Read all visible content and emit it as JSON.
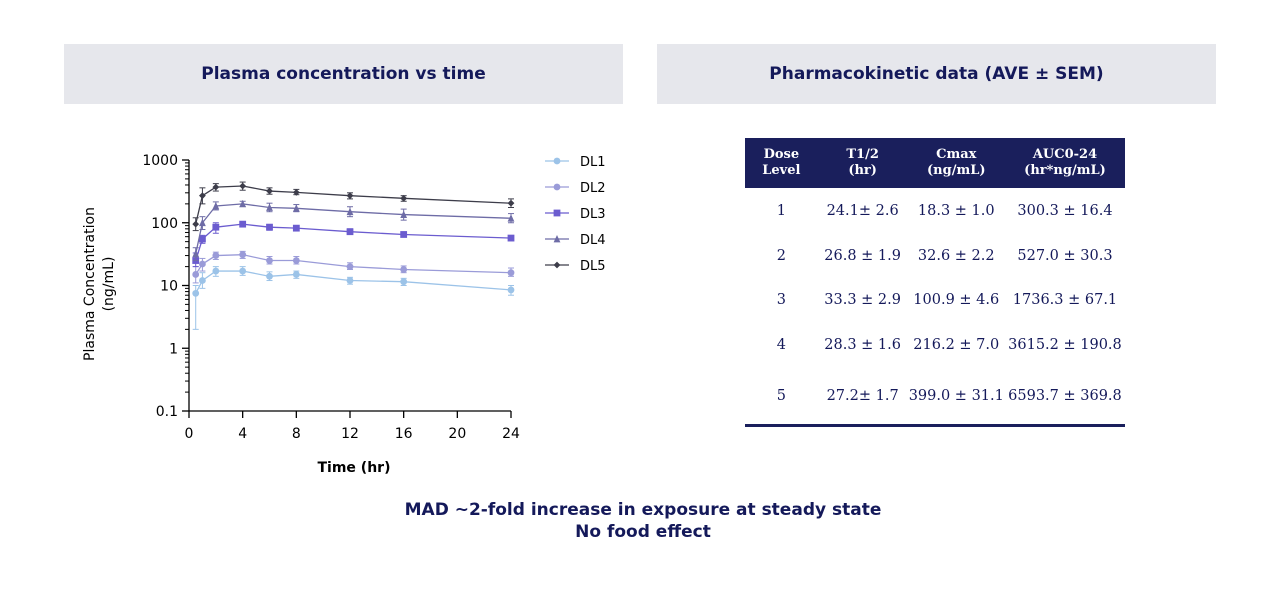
{
  "panels": {
    "left_title": "Plasma concentration vs time",
    "right_title": "Pharmacokinetic data  (AVE ± SEM)"
  },
  "chart_data": {
    "type": "line",
    "title": "",
    "xlabel": "Time (hr)",
    "ylabel": [
      "Plasma Concentration",
      "(ng/mL)"
    ],
    "x_ticks": [
      0,
      4,
      8,
      12,
      16,
      20,
      24
    ],
    "y_scale": "log",
    "y_ticks": [
      0.1,
      1,
      10,
      100,
      1000
    ],
    "y_tick_labels": [
      "0.1",
      "1",
      "10",
      "100",
      "1000"
    ],
    "xlim": [
      0,
      24
    ],
    "ylim": [
      0.1,
      1000
    ],
    "legend_position": "right",
    "x": [
      0.5,
      1,
      2,
      4,
      6,
      8,
      12,
      16,
      24
    ],
    "series": [
      {
        "name": "DL1",
        "color": "#9cc3e8",
        "marker": "circle",
        "values": [
          7.5,
          12,
          17,
          17,
          14,
          15,
          12,
          11.5,
          8.5
        ],
        "err_low": [
          2,
          9,
          14,
          14.5,
          12,
          13,
          10.5,
          10,
          7
        ],
        "err_high": [
          10,
          16,
          20,
          20,
          16.5,
          17,
          13.5,
          13,
          10
        ]
      },
      {
        "name": "DL2",
        "color": "#9a9bd8",
        "marker": "circle",
        "values": [
          15,
          22,
          30,
          31,
          25,
          25,
          20,
          18,
          16
        ],
        "err_low": [
          11,
          17,
          26,
          27,
          22,
          22,
          18,
          16,
          14
        ],
        "err_high": [
          20,
          27,
          34,
          35,
          29,
          29,
          23,
          20.5,
          19
        ]
      },
      {
        "name": "DL3",
        "color": "#6b5ccf",
        "marker": "square",
        "values": [
          25,
          55,
          85,
          95,
          85,
          82,
          72,
          65,
          57
        ],
        "err_low": [
          20,
          47,
          68,
          87,
          76,
          74,
          65,
          60,
          53
        ],
        "err_high": [
          33,
          63,
          100,
          103,
          94,
          90,
          80,
          71,
          61
        ]
      },
      {
        "name": "DL4",
        "color": "#6e6ca6",
        "marker": "triangle",
        "values": [
          32,
          100,
          185,
          200,
          175,
          170,
          150,
          135,
          118
        ],
        "err_low": [
          25,
          78,
          160,
          182,
          150,
          150,
          125,
          110,
          100
        ],
        "err_high": [
          40,
          125,
          215,
          220,
          205,
          195,
          180,
          165,
          140
        ]
      },
      {
        "name": "DL5",
        "color": "#3d3d4a",
        "marker": "diamond",
        "values": [
          95,
          270,
          370,
          385,
          320,
          305,
          270,
          245,
          205
        ],
        "err_low": [
          75,
          200,
          320,
          330,
          285,
          280,
          240,
          220,
          175
        ],
        "err_high": [
          120,
          360,
          420,
          445,
          360,
          340,
          300,
          270,
          240
        ]
      }
    ]
  },
  "table": {
    "headers": [
      [
        "Dose",
        "Level"
      ],
      [
        "T1/2",
        "(hr)"
      ],
      [
        "Cmax",
        "(ng/mL)"
      ],
      [
        "AUC0-24",
        "(hr*ng/mL)"
      ]
    ],
    "rows": [
      [
        "1",
        "24.1± 2.6",
        "18.3 ± 1.0",
        "300.3 ± 16.4"
      ],
      [
        "2",
        "26.8 ± 1.9",
        "32.6 ± 2.2",
        "527.0 ± 30.3"
      ],
      [
        "3",
        "33.3 ± 2.9",
        "100.9 ± 4.6",
        "1736.3 ± 67.1"
      ],
      [
        "4",
        "28.3 ± 1.6",
        "216.2 ± 7.0",
        "3615.2 ± 190.8"
      ],
      [
        "5",
        "27.2± 1.7",
        "399.0 ± 31.1",
        "6593.7 ± 369.8"
      ]
    ]
  },
  "footnote": {
    "line1": "MAD ~2-fold increase in exposure at steady state",
    "line2": "No food effect"
  }
}
